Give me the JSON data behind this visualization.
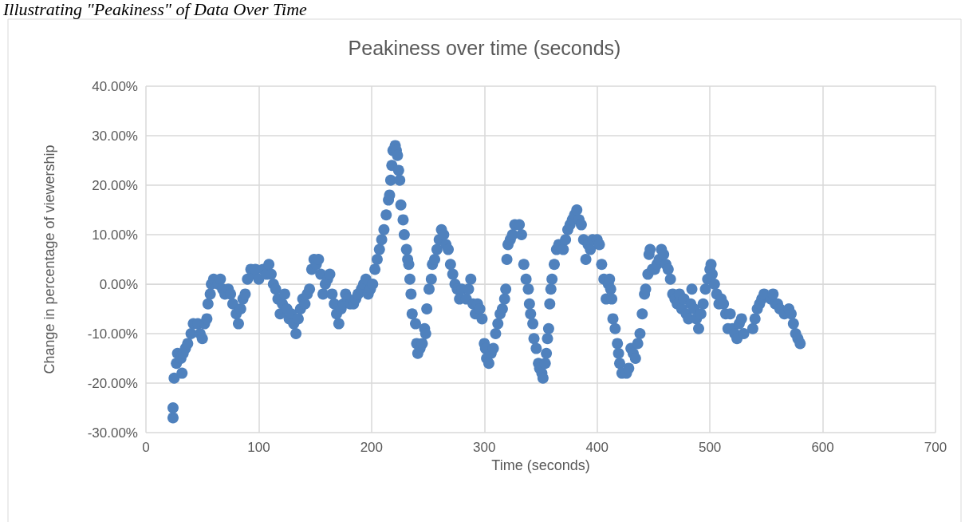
{
  "chart_data": {
    "type": "scatter",
    "title": "Peakiness over time (seconds)",
    "xlabel": "Time (seconds)",
    "ylabel": "Change in percentage of viewership",
    "annotations": [
      "Illustrating \"Peakiness\" of Data Over Time"
    ],
    "xlim": [
      0,
      700
    ],
    "xticks": [
      0,
      100,
      200,
      300,
      400,
      500,
      600,
      700
    ],
    "ylim": [
      -30,
      40
    ],
    "yticks": [
      {
        "value": -30,
        "label": "-30.00%"
      },
      {
        "value": -20,
        "label": "-20.00%"
      },
      {
        "value": -10,
        "label": "-10.00%"
      },
      {
        "value": 0,
        "label": "0.00%"
      },
      {
        "value": 10,
        "label": "10.00%"
      },
      {
        "value": 20,
        "label": "20.00%"
      },
      {
        "value": 30,
        "label": "30.00%"
      },
      {
        "value": 40,
        "label": "40.00%"
      }
    ],
    "grid": true,
    "marker": "circle",
    "series": [
      {
        "color": "#4f81bd",
        "x": [
          24,
          24,
          25,
          27,
          28,
          31,
          32,
          33,
          35,
          37,
          40,
          42,
          46,
          48,
          50,
          52,
          54,
          55,
          57,
          58,
          60,
          64,
          66,
          68,
          70,
          73,
          75,
          77,
          80,
          82,
          84,
          86,
          88,
          90,
          93,
          95,
          97,
          100,
          104,
          107,
          109,
          111,
          113,
          115,
          117,
          119,
          121,
          123,
          125,
          127,
          129,
          131,
          133,
          135,
          137,
          139,
          141,
          143,
          145,
          147,
          149,
          151,
          153,
          155,
          157,
          159,
          161,
          163,
          165,
          167,
          169,
          171,
          173,
          175,
          177,
          179,
          181,
          184,
          186,
          188,
          191,
          193,
          195,
          197,
          199,
          201,
          203,
          205,
          207,
          209,
          211,
          213,
          215,
          216,
          217,
          218,
          219,
          221,
          222,
          223,
          224,
          225,
          226,
          228,
          229,
          231,
          232,
          233,
          234,
          235,
          236,
          239,
          240,
          241,
          243,
          245,
          247,
          248,
          249,
          251,
          253,
          254,
          256,
          258,
          260,
          262,
          264,
          266,
          268,
          270,
          272,
          274,
          276,
          278,
          280,
          284,
          286,
          288,
          290,
          292,
          294,
          296,
          298,
          300,
          301,
          302,
          304,
          306,
          308,
          310,
          312,
          314,
          316,
          318,
          319,
          320,
          321,
          323,
          325,
          327,
          331,
          333,
          335,
          337,
          339,
          340,
          341,
          343,
          344,
          346,
          348,
          349,
          351,
          352,
          354,
          355,
          356,
          357,
          358,
          359,
          360,
          362,
          364,
          366,
          370,
          372,
          374,
          376,
          378,
          380,
          382,
          384,
          386,
          388,
          390,
          392,
          394,
          396,
          400,
          402,
          404,
          406,
          408,
          410,
          411,
          412,
          413,
          414,
          416,
          418,
          419,
          420,
          422,
          426,
          428,
          430,
          432,
          434,
          436,
          438,
          440,
          442,
          443,
          445,
          446,
          447,
          449,
          451,
          453,
          455,
          457,
          459,
          461,
          463,
          465,
          467,
          469,
          471,
          473,
          475,
          477,
          479,
          481,
          483,
          484,
          486,
          488,
          490,
          492,
          494,
          496,
          498,
          500,
          501,
          502,
          504,
          506,
          508,
          510,
          512,
          514,
          516,
          518,
          520,
          522,
          524,
          526,
          528,
          530,
          538,
          540,
          542,
          544,
          546,
          548,
          554,
          556,
          558,
          560,
          562,
          566,
          570,
          572,
          574,
          576,
          578,
          580
        ],
        "values": [
          -27,
          -25,
          -19,
          -16,
          -14,
          -15,
          -18,
          -14,
          -13,
          -12,
          -10,
          -8,
          -8,
          -10,
          -11,
          -8,
          -7,
          -4,
          -2,
          0,
          1,
          0,
          1,
          -1,
          -2,
          -1,
          -2,
          -4,
          -6,
          -8,
          -5,
          -3,
          -2,
          1,
          3,
          2,
          3,
          1,
          3,
          2,
          4,
          2,
          0,
          -1,
          -3,
          -6,
          -4,
          -2,
          -5,
          -7,
          -6,
          -8,
          -10,
          -7,
          -5,
          -3,
          -4,
          -2,
          -1,
          3,
          5,
          4,
          5,
          2,
          -2,
          0,
          1,
          2,
          -2,
          -4,
          -6,
          -8,
          -5,
          -4,
          -2,
          -3,
          -4,
          -4,
          -3,
          -2,
          -1,
          0,
          1,
          -2,
          -1,
          0,
          3,
          5,
          7,
          9,
          11,
          14,
          17,
          18,
          21,
          24,
          27,
          28,
          27,
          26,
          23,
          21,
          16,
          13,
          10,
          7,
          5,
          4,
          1,
          -2,
          -6,
          -8,
          -12,
          -14,
          -13,
          -12,
          -9,
          -10,
          -5,
          -1,
          1,
          4,
          5,
          7,
          9,
          11,
          10,
          8,
          7,
          4,
          2,
          0,
          -1,
          -3,
          -1,
          -3,
          -1,
          1,
          -4,
          -6,
          -4,
          -5,
          -7,
          -12,
          -13,
          -15,
          -16,
          -14,
          -13,
          -10,
          -8,
          -6,
          -5,
          -3,
          -1,
          5,
          8,
          9,
          10,
          12,
          12,
          10,
          4,
          1,
          -1,
          -4,
          -6,
          -8,
          -11,
          -13,
          -16,
          -17,
          -18,
          -19,
          -16,
          -14,
          -11,
          -9,
          -4,
          -1,
          1,
          4,
          7,
          8,
          7,
          9,
          11,
          12,
          13,
          14,
          15,
          13,
          12,
          9,
          5,
          8,
          7,
          9,
          9,
          8,
          4,
          1,
          -3,
          0,
          1,
          -1,
          -3,
          -7,
          -9,
          -12,
          -14,
          -16,
          -18,
          -18,
          -17,
          -13,
          -14,
          -15,
          -12,
          -10,
          -6,
          -2,
          -1,
          2,
          6,
          7,
          3,
          3,
          4,
          5,
          7,
          6,
          4,
          3,
          1,
          -2,
          -3,
          -4,
          -2,
          -5,
          -3,
          -6,
          -7,
          -4,
          -1,
          -5,
          -7,
          -9,
          -6,
          -4,
          -1,
          1,
          3,
          4,
          2,
          0,
          -2,
          -4,
          -3,
          -4,
          -6,
          -9,
          -6,
          -9,
          -10,
          -11,
          -8,
          -7,
          -10,
          -9,
          -7,
          -5,
          -4,
          -3,
          -2,
          -3,
          -2,
          -4,
          -4,
          -5,
          -6,
          -5,
          -6,
          -8,
          -10,
          -11,
          -12
        ]
      }
    ]
  }
}
